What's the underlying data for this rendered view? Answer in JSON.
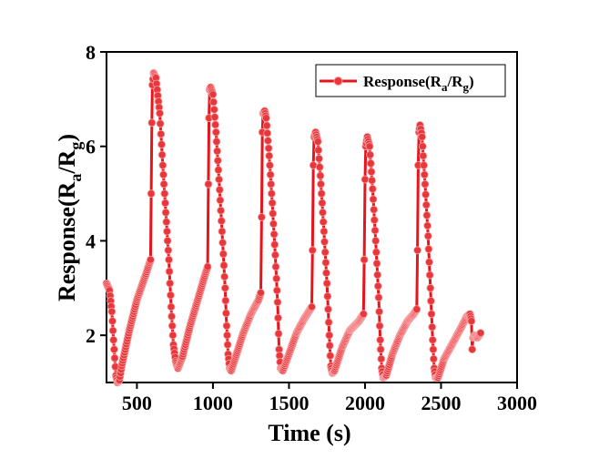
{
  "chart_data": {
    "type": "scatter",
    "title": "",
    "xlabel": "Time (s)",
    "ylabel": "Response(Ra/Rg)",
    "xlim": [
      300,
      3000
    ],
    "ylim": [
      1,
      8
    ],
    "x_ticks": [
      "500",
      "1000",
      "1500",
      "2000",
      "2500",
      "3000"
    ],
    "y_ticks": [
      "2",
      "4",
      "6",
      "8"
    ],
    "legend": {
      "position": "top-right",
      "label": "Response(Ra/Rg)",
      "base": "Response(R",
      "sub1": "a",
      "mid": "/R",
      "sub2": "g",
      "tail": ")"
    },
    "color": "#e8373b",
    "line_color": "#e8141b",
    "anchors": [
      [
        300,
        3.1
      ],
      [
        320,
        2.95
      ],
      [
        335,
        2.5
      ],
      [
        350,
        1.7
      ],
      [
        362,
        1.15
      ],
      [
        372,
        1.0
      ],
      [
        385,
        1.05
      ],
      [
        400,
        1.35
      ],
      [
        450,
        2.1
      ],
      [
        500,
        2.75
      ],
      [
        560,
        3.3
      ],
      [
        580,
        3.5
      ],
      [
        590,
        3.6
      ],
      [
        594,
        5.0
      ],
      [
        598,
        6.5
      ],
      [
        602,
        7.3
      ],
      [
        610,
        7.55
      ],
      [
        625,
        7.45
      ],
      [
        650,
        6.7
      ],
      [
        670,
        5.6
      ],
      [
        690,
        4.6
      ],
      [
        710,
        3.6
      ],
      [
        725,
        2.6
      ],
      [
        740,
        1.8
      ],
      [
        755,
        1.45
      ],
      [
        770,
        1.3
      ],
      [
        800,
        1.55
      ],
      [
        850,
        2.2
      ],
      [
        900,
        2.75
      ],
      [
        950,
        3.3
      ],
      [
        965,
        3.45
      ],
      [
        970,
        5.2
      ],
      [
        974,
        6.6
      ],
      [
        978,
        7.2
      ],
      [
        985,
        7.25
      ],
      [
        1000,
        7.1
      ],
      [
        1020,
        6.3
      ],
      [
        1040,
        5.3
      ],
      [
        1060,
        4.2
      ],
      [
        1080,
        3.0
      ],
      [
        1090,
        2.2
      ],
      [
        1100,
        1.6
      ],
      [
        1110,
        1.3
      ],
      [
        1120,
        1.25
      ],
      [
        1150,
        1.55
      ],
      [
        1200,
        2.05
      ],
      [
        1250,
        2.45
      ],
      [
        1300,
        2.75
      ],
      [
        1315,
        2.9
      ],
      [
        1320,
        4.5
      ],
      [
        1325,
        6.3
      ],
      [
        1330,
        6.7
      ],
      [
        1340,
        6.75
      ],
      [
        1350,
        6.6
      ],
      [
        1370,
        5.8
      ],
      [
        1390,
        4.8
      ],
      [
        1410,
        3.7
      ],
      [
        1425,
        2.7
      ],
      [
        1435,
        1.7
      ],
      [
        1445,
        1.3
      ],
      [
        1460,
        1.25
      ],
      [
        1500,
        1.6
      ],
      [
        1550,
        2.05
      ],
      [
        1600,
        2.35
      ],
      [
        1650,
        2.6
      ],
      [
        1655,
        3.8
      ],
      [
        1660,
        5.6
      ],
      [
        1665,
        6.2
      ],
      [
        1675,
        6.3
      ],
      [
        1690,
        6.1
      ],
      [
        1710,
        5.2
      ],
      [
        1730,
        4.2
      ],
      [
        1750,
        3.1
      ],
      [
        1765,
        2.0
      ],
      [
        1775,
        1.35
      ],
      [
        1785,
        1.2
      ],
      [
        1800,
        1.25
      ],
      [
        1850,
        1.75
      ],
      [
        1900,
        2.1
      ],
      [
        1960,
        2.3
      ],
      [
        1990,
        2.45
      ],
      [
        1995,
        3.6
      ],
      [
        2000,
        5.3
      ],
      [
        2005,
        6.0
      ],
      [
        2015,
        6.2
      ],
      [
        2030,
        6.0
      ],
      [
        2050,
        5.1
      ],
      [
        2070,
        4.0
      ],
      [
        2090,
        2.8
      ],
      [
        2100,
        1.9
      ],
      [
        2110,
        1.3
      ],
      [
        2120,
        1.1
      ],
      [
        2140,
        1.15
      ],
      [
        2180,
        1.6
      ],
      [
        2230,
        2.0
      ],
      [
        2280,
        2.3
      ],
      [
        2320,
        2.45
      ],
      [
        2340,
        2.55
      ],
      [
        2345,
        3.8
      ],
      [
        2350,
        5.6
      ],
      [
        2355,
        6.3
      ],
      [
        2362,
        6.45
      ],
      [
        2375,
        6.2
      ],
      [
        2395,
        5.2
      ],
      [
        2415,
        4.1
      ],
      [
        2430,
        3.0
      ],
      [
        2445,
        1.9
      ],
      [
        2455,
        1.3
      ],
      [
        2465,
        1.1
      ],
      [
        2480,
        1.1
      ],
      [
        2520,
        1.5
      ],
      [
        2580,
        1.85
      ],
      [
        2630,
        2.15
      ],
      [
        2670,
        2.4
      ],
      [
        2690,
        2.45
      ],
      [
        2700,
        2.3
      ],
      [
        2705,
        1.7
      ],
      [
        2710,
        1.95
      ],
      [
        2720,
        2.0
      ],
      [
        2740,
        1.95
      ],
      [
        2760,
        2.05
      ]
    ]
  }
}
